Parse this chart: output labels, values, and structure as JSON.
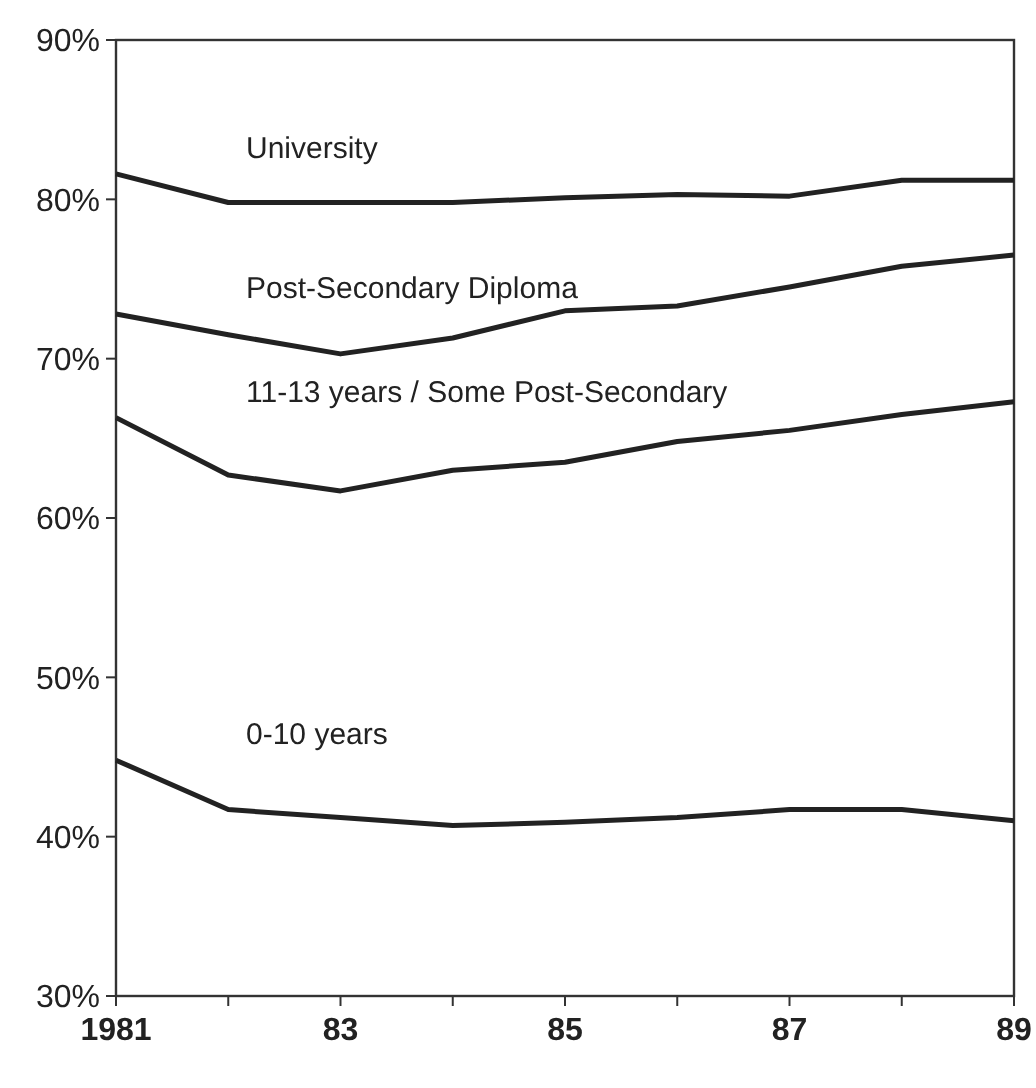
{
  "chart_data": {
    "type": "line",
    "x": [
      1981,
      1982,
      1983,
      1984,
      1985,
      1986,
      1987,
      1988,
      1989
    ],
    "series": [
      {
        "name": "University",
        "color": "#222222",
        "values": [
          81.6,
          79.8,
          79.8,
          79.8,
          80.1,
          80.3,
          80.2,
          81.2,
          81.2
        ]
      },
      {
        "name": "Post-Secondary Diploma",
        "color": "#222222",
        "values": [
          72.8,
          71.5,
          70.3,
          71.3,
          73.0,
          73.3,
          74.5,
          75.8,
          76.5
        ]
      },
      {
        "name": "11-13 years / Some Post-Secondary",
        "color": "#222222",
        "values": [
          66.3,
          62.7,
          61.7,
          63.0,
          63.5,
          64.8,
          65.5,
          66.5,
          67.3
        ]
      },
      {
        "name": "0-10 years",
        "color": "#222222",
        "values": [
          44.8,
          41.7,
          41.2,
          40.7,
          40.9,
          41.2,
          41.7,
          41.7,
          41.0
        ]
      }
    ],
    "xlim": [
      1981,
      1989
    ],
    "xticks": [
      {
        "value": 1981,
        "label": "1981"
      },
      {
        "value": 1982,
        "label": null
      },
      {
        "value": 1983,
        "label": "83"
      },
      {
        "value": 1984,
        "label": null
      },
      {
        "value": 1985,
        "label": "85"
      },
      {
        "value": 1986,
        "label": null
      },
      {
        "value": 1987,
        "label": "87"
      },
      {
        "value": 1988,
        "label": null
      },
      {
        "value": 1989,
        "label": "89"
      }
    ],
    "ylim": [
      30,
      90
    ],
    "yticks": [
      {
        "value": 30,
        "label": "30%"
      },
      {
        "value": 40,
        "label": "40%"
      },
      {
        "value": 50,
        "label": "50%"
      },
      {
        "value": 60,
        "label": "60%"
      },
      {
        "value": 70,
        "label": "70%"
      },
      {
        "value": 80,
        "label": "80%"
      },
      {
        "value": 90,
        "label": "90%"
      }
    ],
    "grid": false,
    "legend": false,
    "marker": "none",
    "line_style": "solid"
  }
}
